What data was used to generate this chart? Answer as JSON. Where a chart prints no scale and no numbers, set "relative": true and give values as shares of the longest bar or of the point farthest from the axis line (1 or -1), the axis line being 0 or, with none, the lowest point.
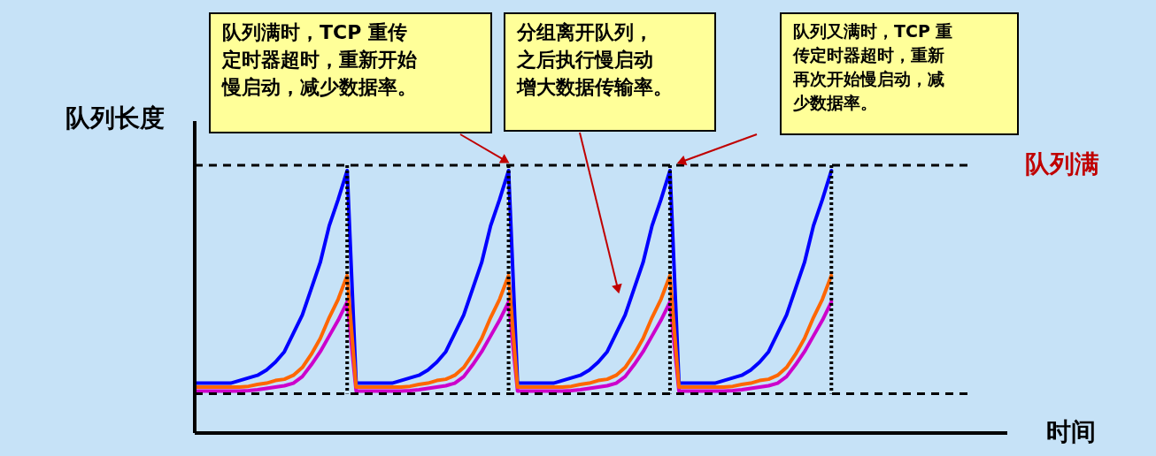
{
  "chart_data": {
    "type": "line",
    "relative": true,
    "tick_labels": false,
    "grid": "x",
    "ylabel": "队列长度",
    "categories": [
      null,
      null,
      null,
      null,
      null,
      null,
      null,
      null,
      null,
      null,
      null,
      null,
      null,
      null,
      null,
      null,
      null,
      null,
      null,
      null,
      null,
      null,
      null,
      null,
      null,
      null,
      null,
      null,
      null,
      null,
      null,
      null,
      null,
      null,
      null,
      null,
      null,
      null,
      null,
      null,
      null,
      null,
      null,
      null,
      null,
      null,
      null,
      null,
      null,
      null,
      null,
      null,
      null,
      null,
      null,
      null,
      null,
      null,
      null,
      null,
      null,
      null,
      null,
      null,
      null,
      null,
      null,
      null,
      null,
      null,
      null,
      null
    ],
    "series": [
      {
        "color": "#0000ff",
        "values": [
          0.19,
          0.19,
          0.19,
          0.19,
          0.19,
          0.2,
          0.21,
          0.22,
          0.24,
          0.27,
          0.31,
          0.38,
          0.45,
          0.55,
          0.65,
          0.79,
          0.89,
          1.0,
          0.19,
          0.19,
          0.19,
          0.19,
          0.19,
          0.2,
          0.21,
          0.22,
          0.24,
          0.27,
          0.31,
          0.38,
          0.45,
          0.55,
          0.65,
          0.79,
          0.89,
          1.0,
          0.19,
          0.19,
          0.19,
          0.19,
          0.19,
          0.2,
          0.21,
          0.22,
          0.24,
          0.27,
          0.31,
          0.38,
          0.45,
          0.55,
          0.65,
          0.79,
          0.89,
          1.0,
          0.19,
          0.19,
          0.19,
          0.19,
          0.19,
          0.2,
          0.21,
          0.22,
          0.24,
          0.27,
          0.31,
          0.38,
          0.45,
          0.55,
          0.65,
          0.79,
          0.89,
          1.0
        ]
      },
      {
        "color": "#cc00cc",
        "values": [
          0.16,
          0.16,
          0.16,
          0.16,
          0.16,
          0.16,
          0.162,
          0.165,
          0.17,
          0.175,
          0.18,
          0.19,
          0.215,
          0.26,
          0.31,
          0.37,
          0.43,
          0.5,
          0.16,
          0.16,
          0.16,
          0.16,
          0.16,
          0.16,
          0.162,
          0.165,
          0.17,
          0.175,
          0.18,
          0.19,
          0.215,
          0.26,
          0.31,
          0.37,
          0.43,
          0.5,
          0.16,
          0.16,
          0.16,
          0.16,
          0.16,
          0.16,
          0.162,
          0.165,
          0.17,
          0.175,
          0.18,
          0.19,
          0.215,
          0.26,
          0.31,
          0.37,
          0.43,
          0.5,
          0.16,
          0.16,
          0.16,
          0.16,
          0.16,
          0.16,
          0.162,
          0.165,
          0.17,
          0.175,
          0.18,
          0.19,
          0.215,
          0.26,
          0.31,
          0.37,
          0.43,
          0.5
        ]
      },
      {
        "color": "#ff6600",
        "values": [
          0.175,
          0.175,
          0.175,
          0.175,
          0.175,
          0.175,
          0.178,
          0.185,
          0.19,
          0.2,
          0.205,
          0.22,
          0.25,
          0.3,
          0.36,
          0.44,
          0.51,
          0.6,
          0.175,
          0.175,
          0.175,
          0.175,
          0.175,
          0.175,
          0.178,
          0.185,
          0.19,
          0.2,
          0.205,
          0.22,
          0.25,
          0.3,
          0.36,
          0.44,
          0.51,
          0.6,
          0.175,
          0.175,
          0.175,
          0.175,
          0.175,
          0.175,
          0.178,
          0.185,
          0.19,
          0.2,
          0.205,
          0.22,
          0.25,
          0.3,
          0.36,
          0.44,
          0.51,
          0.6,
          0.175,
          0.175,
          0.175,
          0.175,
          0.175,
          0.175,
          0.178,
          0.185,
          0.19,
          0.2,
          0.205,
          0.22,
          0.25,
          0.3,
          0.36,
          0.44,
          0.51,
          0.6
        ]
      }
    ],
    "ref_lines": [
      {
        "axis": "y",
        "value": 1.02,
        "label": "队列满",
        "color": "#000000",
        "line_style": "dashed"
      },
      {
        "axis": "y",
        "value": 0.15,
        "label": null,
        "color": "#000000",
        "line_style": "dashed"
      }
    ],
    "annotations": [
      "队列满时，TCP 重传定时器超时，重新开始慢启动，减少数据率。",
      "分组离开队列，之后执行慢启动增大数据传输率。",
      "队列又满时，TCP 重传定时器超时，重新再次开始慢启动，减少数据率。",
      "时间"
    ]
  }
}
